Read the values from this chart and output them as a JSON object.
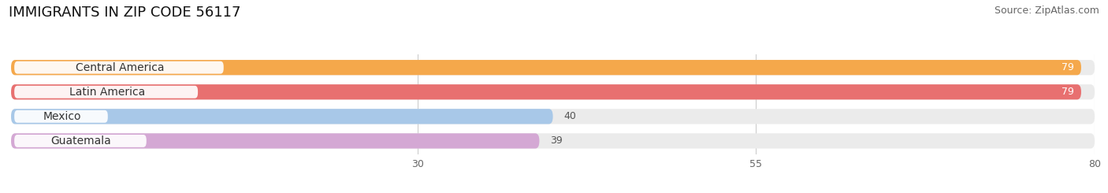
{
  "title": "IMMIGRANTS IN ZIP CODE 56117",
  "source": "Source: ZipAtlas.com",
  "categories": [
    "Central America",
    "Latin America",
    "Mexico",
    "Guatemala"
  ],
  "values": [
    79,
    79,
    40,
    39
  ],
  "bar_colors": [
    "#F5A84B",
    "#E87070",
    "#A8C8E8",
    "#D4A8D4"
  ],
  "bar_bg_color": "#EBEBEB",
  "xlim": [
    0,
    80
  ],
  "xticks": [
    30,
    55,
    80
  ],
  "title_fontsize": 13,
  "label_fontsize": 10,
  "value_fontsize": 9,
  "source_fontsize": 9
}
